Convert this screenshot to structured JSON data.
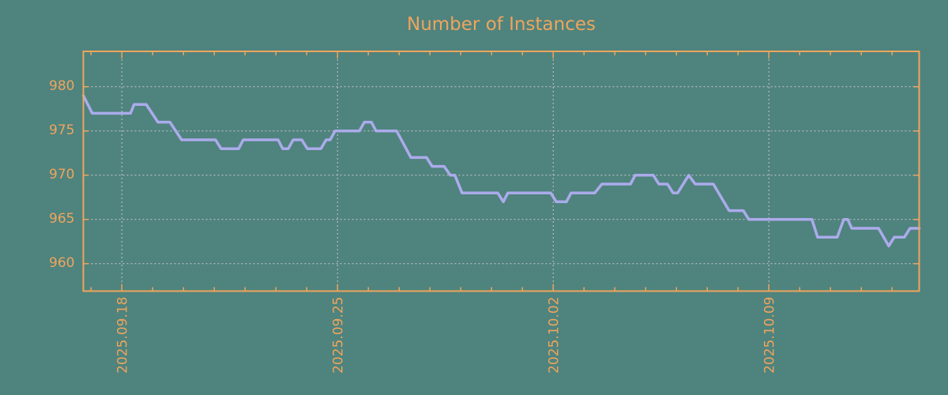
{
  "chart_data": {
    "type": "line",
    "title": "Number of Instances",
    "legend": "none",
    "grid": "dashed",
    "colors": {
      "background": "#4F837E",
      "accent": "#EEA55C",
      "line": "#ABABEB",
      "grid": "#C8C8C8"
    },
    "x_axis": {
      "label": "",
      "unit": "date",
      "tick_labels": [
        "2025.09.18",
        "2025.09.25",
        "2025.10.02",
        "2025.10.09"
      ],
      "major_tick_days": [
        1.25,
        8.25,
        15.25,
        22.25
      ],
      "minor_tick_start_day": 0.25,
      "minor_tick_step_days": 1,
      "minor_tick_count": 27,
      "range_days": [
        0,
        27.13
      ]
    },
    "y_axis": {
      "label": "",
      "ticks": [
        960,
        965,
        970,
        975,
        980
      ],
      "range": [
        956.9,
        984.0
      ]
    },
    "series": [
      {
        "name": "instances",
        "points_day_value": [
          [
            0.0,
            979
          ],
          [
            0.29,
            977
          ],
          [
            1.53,
            977
          ],
          [
            1.65,
            978
          ],
          [
            2.04,
            978
          ],
          [
            2.42,
            976
          ],
          [
            2.81,
            976
          ],
          [
            3.19,
            974
          ],
          [
            4.29,
            974
          ],
          [
            4.47,
            973
          ],
          [
            5.04,
            973
          ],
          [
            5.19,
            974
          ],
          [
            6.32,
            974
          ],
          [
            6.47,
            973
          ],
          [
            6.65,
            973
          ],
          [
            6.81,
            974
          ],
          [
            7.09,
            974
          ],
          [
            7.27,
            973
          ],
          [
            7.71,
            973
          ],
          [
            7.88,
            974
          ],
          [
            8.01,
            974
          ],
          [
            8.17,
            975
          ],
          [
            8.96,
            975
          ],
          [
            9.12,
            976
          ],
          [
            9.35,
            976
          ],
          [
            9.5,
            975
          ],
          [
            10.17,
            975
          ],
          [
            10.63,
            972
          ],
          [
            11.14,
            972
          ],
          [
            11.32,
            971
          ],
          [
            11.71,
            971
          ],
          [
            11.91,
            970
          ],
          [
            12.06,
            970
          ],
          [
            12.29,
            968
          ],
          [
            13.45,
            968
          ],
          [
            13.63,
            967
          ],
          [
            13.78,
            968
          ],
          [
            15.17,
            968
          ],
          [
            15.35,
            967
          ],
          [
            15.68,
            967
          ],
          [
            15.83,
            968
          ],
          [
            16.6,
            968
          ],
          [
            16.83,
            969
          ],
          [
            17.76,
            969
          ],
          [
            17.91,
            970
          ],
          [
            18.5,
            970
          ],
          [
            18.68,
            969
          ],
          [
            18.96,
            969
          ],
          [
            19.14,
            968
          ],
          [
            19.29,
            968
          ],
          [
            19.65,
            970
          ],
          [
            19.86,
            969
          ],
          [
            20.45,
            969
          ],
          [
            20.96,
            966
          ],
          [
            21.42,
            966
          ],
          [
            21.6,
            965
          ],
          [
            23.65,
            965
          ],
          [
            23.83,
            963
          ],
          [
            24.47,
            963
          ],
          [
            24.68,
            965
          ],
          [
            24.81,
            965
          ],
          [
            24.94,
            964
          ],
          [
            25.81,
            964
          ],
          [
            26.14,
            962
          ],
          [
            26.32,
            963
          ],
          [
            26.65,
            963
          ],
          [
            26.83,
            964
          ],
          [
            27.13,
            964
          ]
        ]
      }
    ]
  }
}
